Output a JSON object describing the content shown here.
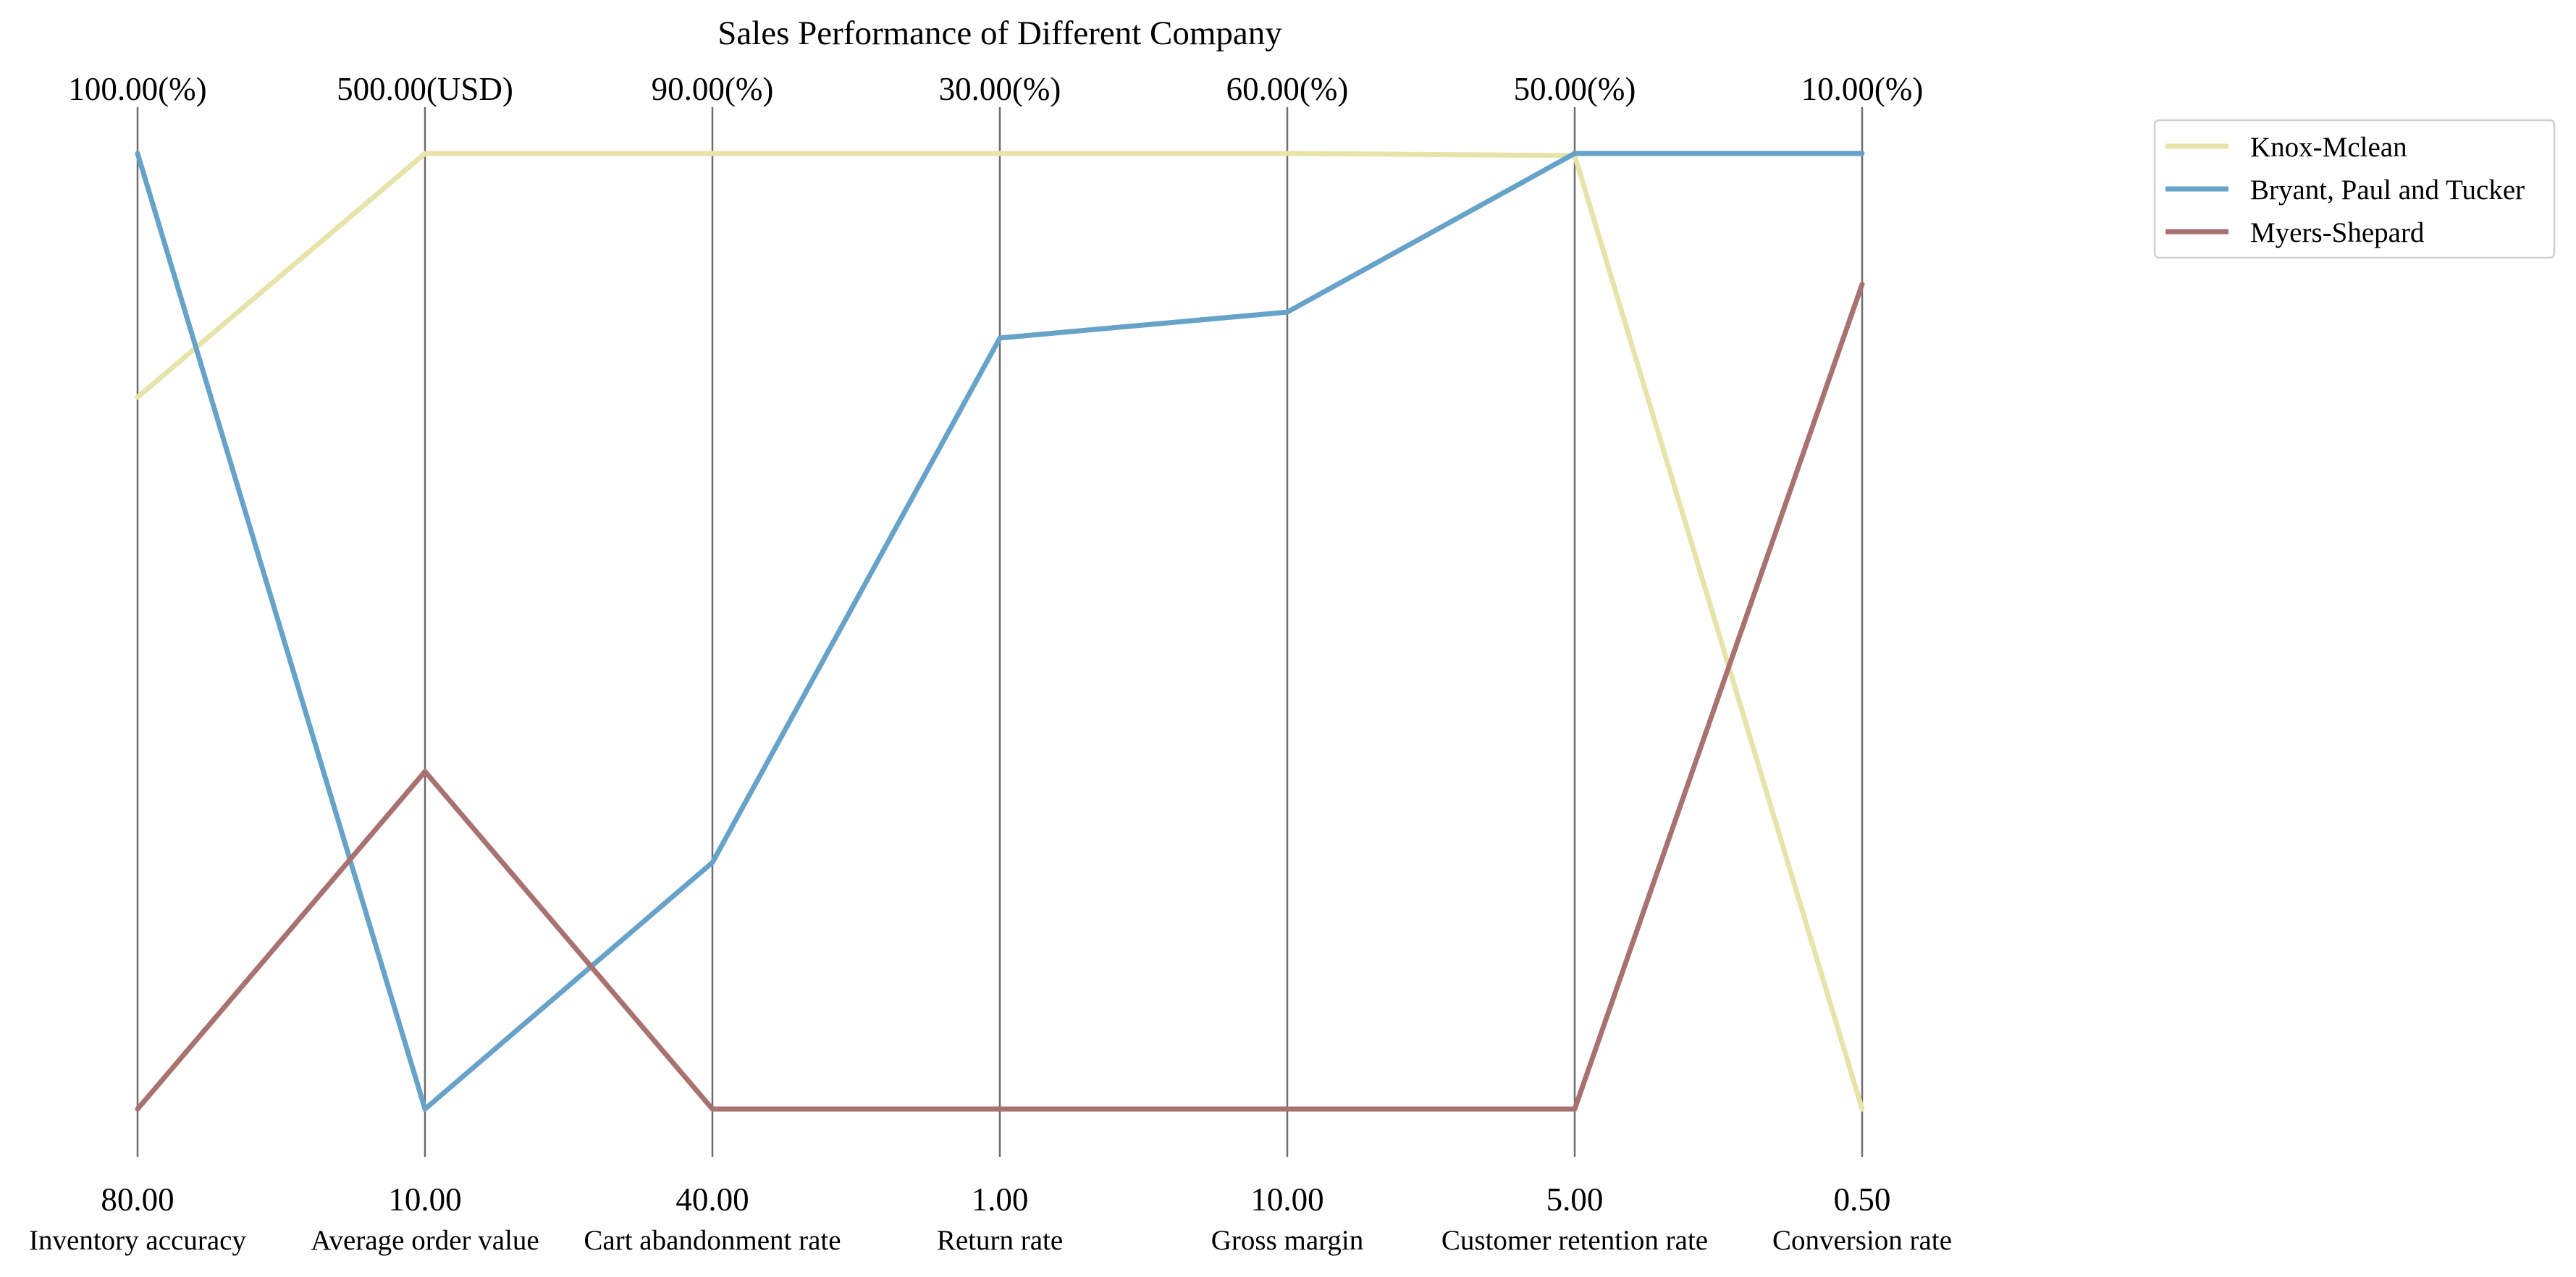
{
  "chart_data": {
    "type": "parallel-coordinates",
    "title": "Sales Performance of Different Company",
    "axes": [
      {
        "name": "Inventory accuracy",
        "min": 80,
        "max": 100,
        "min_label": "80.00",
        "max_label": "100.00(%)"
      },
      {
        "name": "Average order value",
        "min": 10,
        "max": 500,
        "min_label": "10.00",
        "max_label": "500.00(USD)"
      },
      {
        "name": "Cart abandonment rate",
        "min": 40,
        "max": 90,
        "min_label": "40.00",
        "max_label": "90.00(%)"
      },
      {
        "name": "Return rate",
        "min": 1,
        "max": 30,
        "min_label": "1.00",
        "max_label": "30.00(%)"
      },
      {
        "name": "Gross margin",
        "min": 10,
        "max": 60,
        "min_label": "10.00",
        "max_label": "60.00(%)"
      },
      {
        "name": "Customer retention rate",
        "min": 5,
        "max": 50,
        "min_label": "5.00",
        "max_label": "50.00(%)"
      },
      {
        "name": "Conversion rate",
        "min": 0.5,
        "max": 10,
        "min_label": "0.50",
        "max_label": "10.00(%)"
      }
    ],
    "series": [
      {
        "name": "Knox-Mclean",
        "color": "#e6e4aa",
        "values": [
          94.9,
          500,
          90,
          30,
          60,
          49.9,
          0.5
        ]
      },
      {
        "name": "Bryant, Paul and Tucker",
        "color": "#67a2c9",
        "values": [
          100,
          10,
          52.9,
          24.4,
          51.7,
          50,
          10
        ]
      },
      {
        "name": "Myers-Shepard",
        "color": "#a87270",
        "values": [
          80,
          183.1,
          40,
          1,
          10,
          5,
          8.7
        ]
      }
    ],
    "legend_position": "top-right",
    "grid": false
  }
}
